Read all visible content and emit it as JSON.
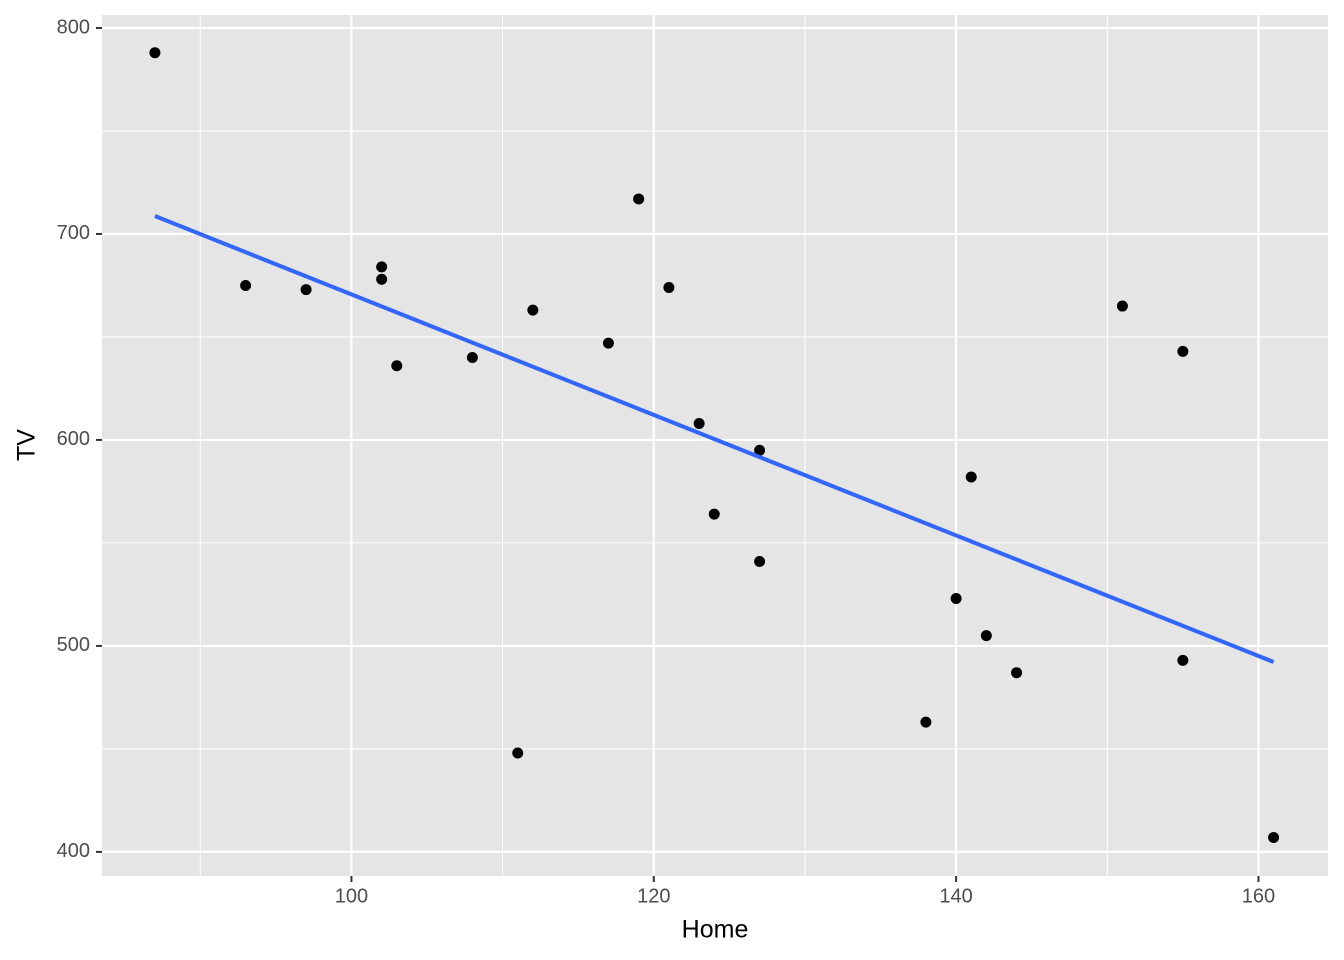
{
  "chart_data": {
    "type": "scatter",
    "x_label": "Home",
    "y_label": "TV",
    "series": [
      {
        "x": [
          87,
          93,
          97,
          102,
          102,
          103,
          108,
          111,
          112,
          117,
          119,
          121,
          123,
          124,
          127,
          127,
          138,
          140,
          141,
          142,
          144,
          151,
          155,
          155,
          161
        ],
        "values": [
          788,
          675,
          673,
          684,
          678,
          636,
          640,
          448,
          663,
          647,
          717,
          674,
          608,
          564,
          595,
          541,
          463,
          523,
          582,
          505,
          487,
          665,
          643,
          493,
          407
        ],
        "color": "#000000"
      }
    ],
    "fit": {
      "x": [
        87,
        161
      ],
      "values": [
        708.7,
        492.2
      ],
      "color": "#3366ff"
    },
    "xlim": [
      83.5,
      164.6
    ],
    "ylim": [
      388.3,
      806.3
    ],
    "xticks": [
      100,
      120,
      140,
      160
    ],
    "yticks": [
      400,
      500,
      600,
      700,
      800
    ],
    "x_minor_ticks": [
      90,
      110,
      130,
      150
    ],
    "y_minor_ticks": [
      450,
      550,
      650,
      750
    ],
    "grid": true
  }
}
